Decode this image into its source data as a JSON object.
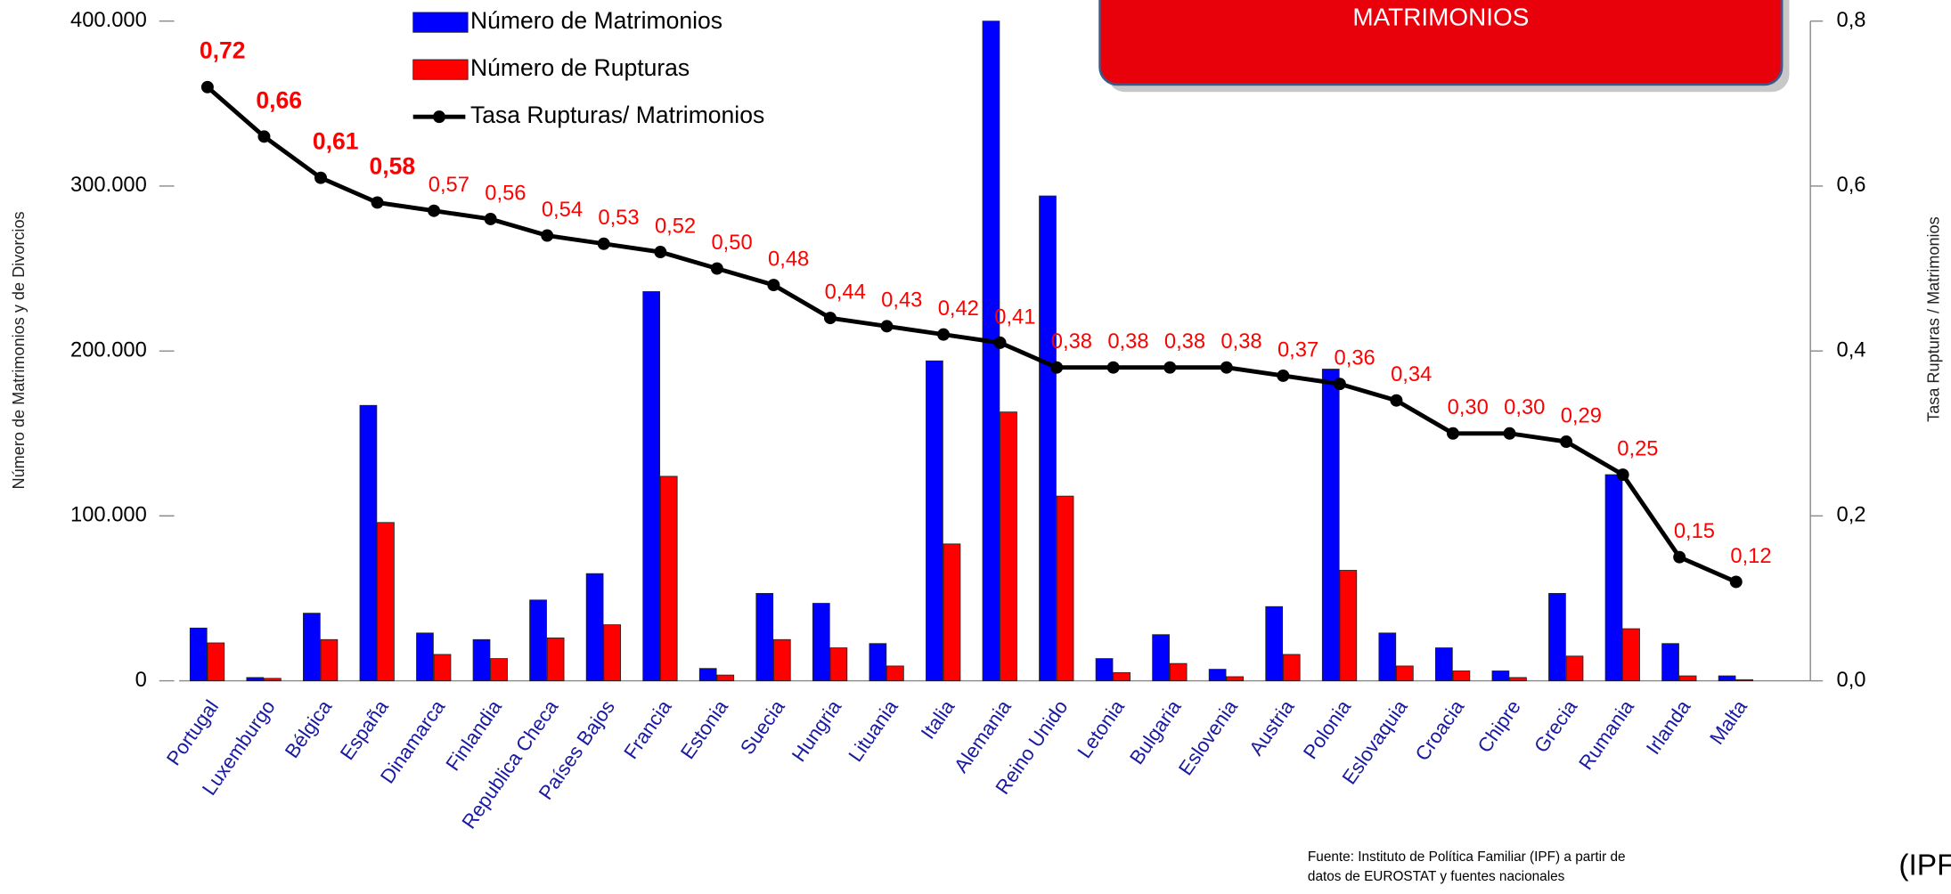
{
  "chart_data": {
    "type": "bar_line",
    "categories": [
      "Portugal",
      "Luxemburgo",
      "Bélgica",
      "España",
      "Dinamarca",
      "Finlandia",
      "Republica Checa",
      "Países Bajos",
      "Francia",
      "Estonia",
      "Suecia",
      "Hungria",
      "Lituania",
      "Italia",
      "Alemania",
      "Reino Unido",
      "Letonia",
      "Bulgaria",
      "Eslovenia",
      "Austria",
      "Polonia",
      "Eslovaquia",
      "Croacia",
      "Chipre",
      "Grecia",
      "Rumania",
      "Irlanda",
      "Malta"
    ],
    "series": [
      {
        "name": "Número de Matrimonios",
        "color": "#0000ff",
        "values": [
          32000,
          2000,
          41000,
          167000,
          29000,
          25000,
          49000,
          65000,
          236000,
          7500,
          53000,
          47000,
          22600,
          194000,
          400000,
          294000,
          13500,
          28000,
          7000,
          45000,
          189000,
          29000,
          20000,
          6000,
          53000,
          125000,
          22600,
          3000
        ]
      },
      {
        "name": "Número de Rupturas",
        "color": "#ff0000",
        "values": [
          23000,
          1500,
          25000,
          96000,
          16000,
          13500,
          26000,
          34000,
          124000,
          3500,
          25000,
          20000,
          9000,
          83000,
          163000,
          112000,
          5000,
          10500,
          2500,
          16000,
          67000,
          9000,
          6000,
          2000,
          15000,
          31600,
          3000,
          700
        ]
      },
      {
        "name": "Tasa Rupturas/ Matrimonios",
        "color": "#000000",
        "axis": "y2",
        "values": [
          0.72,
          0.66,
          0.61,
          0.58,
          0.57,
          0.56,
          0.54,
          0.53,
          0.52,
          0.5,
          0.48,
          0.44,
          0.43,
          0.42,
          0.41,
          0.38,
          0.38,
          0.38,
          0.38,
          0.37,
          0.36,
          0.34,
          0.3,
          0.3,
          0.29,
          0.25,
          0.15,
          0.12
        ],
        "value_labels": [
          "0,72",
          "0,66",
          "0,61",
          "0,58",
          "0,57",
          "0,56",
          "0,54",
          "0,53",
          "0,52",
          "0,50",
          "0,48",
          "0,44",
          "0,43",
          "0,42",
          "0,41",
          "0,38",
          "0,38",
          "0,38",
          "0,38",
          "0,37",
          "0,36",
          "0,34",
          "0,30",
          "0,30",
          "0,29",
          "0,25",
          "0,15",
          "0,12"
        ]
      }
    ],
    "ylabel": "Número de Matrimonios y de Divorcios",
    "y2label": "Tasa Rupturas / Matrimonios",
    "ylim": [
      0,
      400000
    ],
    "yticks": [
      0,
      {
        "value": 100000,
        "label": "100.000"
      },
      {
        "value": 200000,
        "label": "200.000"
      },
      {
        "value": 300000,
        "label": "300.000"
      },
      {
        "value": 400000,
        "label": "400.000"
      }
    ],
    "y2lim": [
      0,
      0.8
    ],
    "y2ticks": [
      {
        "value": 0,
        "label": "0,0"
      },
      {
        "value": 0.2,
        "label": "0,2"
      },
      {
        "value": 0.4,
        "label": "0,4"
      },
      {
        "value": 0.6,
        "label": "0,6"
      },
      {
        "value": 0.8,
        "label": "0,8"
      }
    ],
    "banner": "MATRIMONIOS",
    "source": [
      "Fuente: Instituto de Política Familiar (IPF) a partir de",
      "datos de EUROSTAT y fuentes nacionales"
    ],
    "side_note": "(IPF,"
  }
}
